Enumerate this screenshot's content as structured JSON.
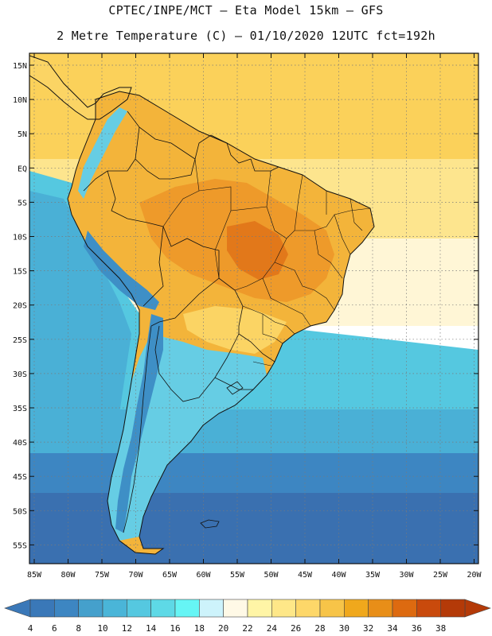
{
  "header": {
    "line1": "CPTEC/INPE/MCT —  Eta Model 15km — GFS",
    "line2": "2 Metre Temperature (C) — 01/10/2020 12UTC fct=192h"
  },
  "axes": {
    "lat_labels": [
      "15N",
      "10N",
      "5N",
      "EQ",
      "5S",
      "10S",
      "15S",
      "20S",
      "25S",
      "30S",
      "35S",
      "40S",
      "45S",
      "50S",
      "55S"
    ],
    "lon_labels": [
      "85W",
      "80W",
      "75W",
      "70W",
      "65W",
      "60W",
      "55W",
      "50W",
      "45W",
      "40W",
      "35W",
      "30W",
      "25W",
      "20W"
    ]
  },
  "colorbar": {
    "labels": [
      "4",
      "6",
      "8",
      "10",
      "12",
      "14",
      "16",
      "18",
      "20",
      "22",
      "24",
      "26",
      "28",
      "30",
      "32",
      "34",
      "36",
      "38"
    ],
    "colors": [
      "#3a78b8",
      "#3d86c2",
      "#45a0cc",
      "#4ab5d8",
      "#55c8e0",
      "#5ed9e6",
      "#66f5f5",
      "#cdf3fb",
      "#fff9e6",
      "#fff5a6",
      "#fee788",
      "#fdd769",
      "#f7c448",
      "#f0a81c",
      "#e88e18",
      "#dd6a10",
      "#c94a0c",
      "#b43a08"
    ]
  },
  "map": {
    "ocean_colors": {
      "warm_north": "#fbd15a",
      "tropical": "#fde58e",
      "subtropical": "#fff6d6",
      "temperate": "#55c8e0",
      "cool": "#4ab0d6",
      "cold": "#3d86c2",
      "polar": "#3a70b0"
    },
    "land_colors": {
      "hot_core": "#e2781a",
      "hot": "#ee9a2a",
      "warm": "#f3b43a",
      "mild": "#fbd464",
      "andes_cold": "#3e8fc6",
      "andes_cool": "#66cde4"
    }
  }
}
